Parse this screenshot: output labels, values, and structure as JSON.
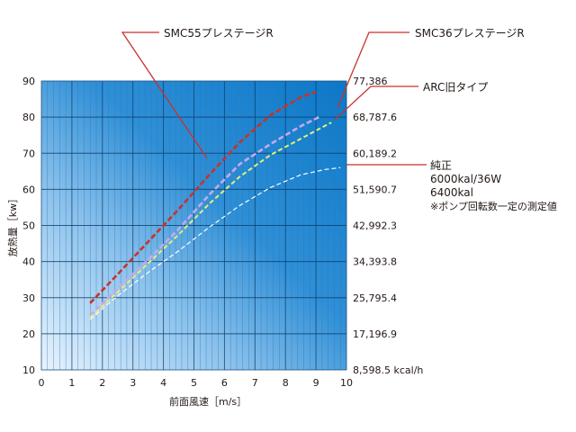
{
  "chart_data": {
    "type": "line",
    "xlabel": "前面風速［m/s］",
    "ylabel": "放熱量［kw］",
    "xlim": [
      0,
      10
    ],
    "ylim": [
      10,
      90
    ],
    "x_ticks": [
      "0",
      "1",
      "2",
      "3",
      "4",
      "5",
      "6",
      "7",
      "8",
      "9",
      "10"
    ],
    "y_ticks": [
      "10",
      "20",
      "30",
      "40",
      "50",
      "60",
      "70",
      "80",
      "90"
    ],
    "y2_ticks": [
      "8,598.5 kcal/h",
      "17,196.9",
      "25,795.4",
      "34,393.8",
      "42,992.3",
      "51,590.7",
      "60,189.2",
      "68,787.6",
      "77,386"
    ],
    "grid": true,
    "series": [
      {
        "name": "SMC55プレステージR",
        "color": "#c8322a",
        "style": "dashed-thick",
        "x": [
          1.6,
          2.5,
          3.5,
          4.5,
          5.5,
          6.5,
          7.5,
          8.5,
          9.0
        ],
        "y": [
          28.5,
          36.5,
          45.5,
          54.5,
          64.0,
          73.0,
          80.5,
          85.5,
          87.0
        ]
      },
      {
        "name": "SMC36プレステージR",
        "color": "#c8a8ee",
        "style": "dashed-thick",
        "x": [
          1.6,
          2.5,
          3.5,
          4.5,
          5.5,
          6.5,
          7.5,
          8.5,
          9.1
        ],
        "y": [
          25.0,
          32.5,
          40.5,
          49.0,
          58.5,
          67.0,
          72.5,
          77.5,
          80.0
        ]
      },
      {
        "name": "ARC旧タイプ",
        "color": "#e4ee7a",
        "style": "dashed",
        "x": [
          1.6,
          2.5,
          3.5,
          4.5,
          5.5,
          6.5,
          7.5,
          8.5,
          9.5
        ],
        "y": [
          24.5,
          31.5,
          39.5,
          47.5,
          56.0,
          63.5,
          69.5,
          74.0,
          78.5
        ]
      },
      {
        "name": "純正",
        "color": "#ffffff",
        "style": "dashed-thin",
        "x": [
          1.6,
          2.5,
          3.5,
          4.5,
          5.5,
          6.5,
          7.5,
          8.5,
          9.3,
          9.8
        ],
        "y": [
          24.0,
          30.5,
          37.0,
          43.0,
          49.5,
          55.5,
          60.5,
          64.0,
          65.5,
          66.0
        ]
      }
    ],
    "annotations": [
      {
        "id": "smc55",
        "text": "SMC55プレステージR"
      },
      {
        "id": "smc36",
        "text": "SMC36プレステージR"
      },
      {
        "id": "arc",
        "text": "ARC旧タイプ"
      },
      {
        "id": "junsei",
        "lines": [
          "純正",
          "6000kal/36W",
          "6400kal",
          "※ポンプ回転数一定の測定値"
        ]
      }
    ]
  },
  "colors": {
    "bg_light": "#e6f2fc",
    "bg_mid": "#56a6df",
    "bg_dark": "#0d7bc9",
    "leader": "#c8322a",
    "grid_major": "#0a3d6a",
    "grid_minor": "#2c7ab8"
  }
}
